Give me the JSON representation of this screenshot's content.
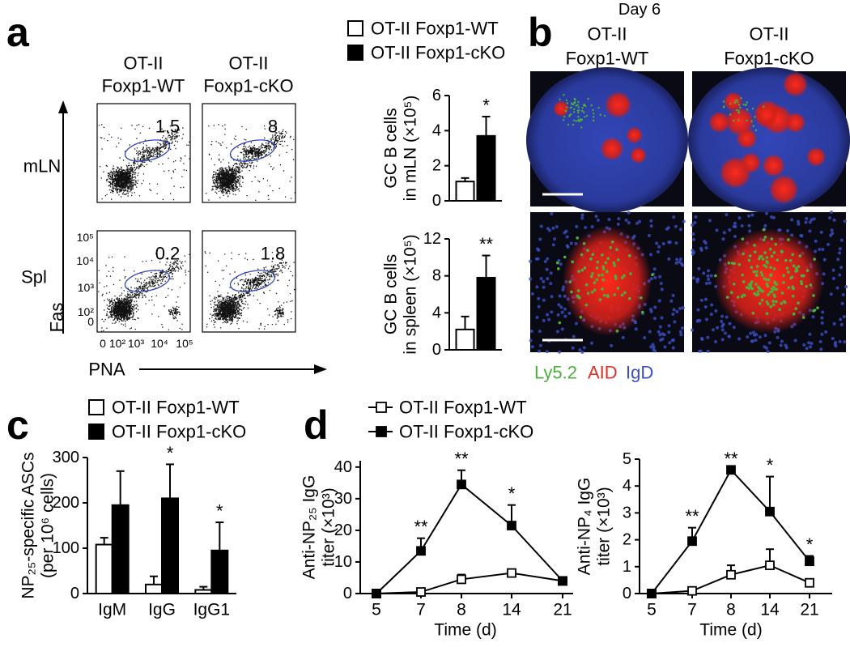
{
  "flow": {
    "panel": "a",
    "columns": [
      [
        "OT-II",
        "Foxp1-WT"
      ],
      [
        "OT-II",
        "Foxp1-cKO"
      ]
    ],
    "rows": [
      "mLN",
      "Spl"
    ],
    "gates": [
      [
        1.5,
        8
      ],
      [
        0.2,
        1.8
      ]
    ],
    "y_axis_label": "Fas",
    "x_axis_label": "PNA",
    "yticks": [
      "10⁵",
      "10⁴",
      "10³",
      "10²",
      0
    ],
    "xticks": [
      0,
      "10²",
      "10³",
      "10⁴",
      "10⁵"
    ]
  },
  "microscopy": {
    "panel": "b",
    "title": "Day 6",
    "columns": [
      [
        "OT-II",
        "Foxp1-WT"
      ],
      [
        "OT-II",
        "Foxp1-cKO"
      ]
    ],
    "stains": [
      {
        "name": "Ly5.2",
        "color": "#4caf3c"
      },
      {
        "name": "AID",
        "color": "#e0302a"
      },
      {
        "name": "IgD",
        "color": "#3b4fc4"
      }
    ]
  },
  "chart_data": [
    {
      "type": "bar",
      "ylabel": [
        "GC B cells",
        "in mLN (×10⁵)"
      ],
      "ylim": [
        0,
        6
      ],
      "yticks": [
        0,
        2,
        4,
        6
      ],
      "series": [
        {
          "name": "OT-II Foxp1-WT",
          "color": "#ffffff",
          "values": [
            1.1
          ],
          "errors": [
            0.2
          ]
        },
        {
          "name": "OT-II Foxp1-cKO",
          "color": "#000000",
          "values": [
            3.7
          ],
          "errors": [
            1.1
          ],
          "significance": [
            "*"
          ]
        }
      ]
    },
    {
      "type": "bar",
      "ylabel": [
        "GC B cells",
        "in spleen (×10⁵)"
      ],
      "ylim": [
        0,
        12
      ],
      "yticks": [
        0,
        4,
        8,
        12
      ],
      "series": [
        {
          "color": "#ffffff",
          "values": [
            2.2
          ],
          "errors": [
            1.4
          ]
        },
        {
          "color": "#000000",
          "values": [
            7.8
          ],
          "errors": [
            2.4
          ],
          "significance": [
            "**"
          ]
        }
      ]
    },
    {
      "type": "bar",
      "panel": "c",
      "ylabel": [
        "NP₂₅-specific ASCs",
        "(per 10⁶ cells)"
      ],
      "categories": [
        "IgM",
        "IgG",
        "IgG1"
      ],
      "ylim": [
        0,
        300
      ],
      "yticks": [
        0,
        100,
        200,
        300
      ],
      "series": [
        {
          "name": "OT-II Foxp1-WT",
          "color": "#ffffff",
          "values": [
            108,
            20,
            8
          ],
          "errors": [
            15,
            18,
            7
          ]
        },
        {
          "name": "OT-II Foxp1-cKO",
          "color": "#000000",
          "values": [
            195,
            210,
            95
          ],
          "errors": [
            75,
            75,
            62
          ],
          "significance": [
            null,
            "*",
            "*"
          ]
        }
      ]
    },
    {
      "type": "line",
      "panel": "d",
      "ylabel": [
        "Anti-NP₂₅ IgG",
        "titer (×10³)"
      ],
      "xlabel": "Time (d)",
      "categories": [
        "5",
        "7",
        "8",
        "14",
        "21"
      ],
      "ylim": [
        0,
        42
      ],
      "yticks": [
        0,
        10,
        20,
        30,
        40
      ],
      "series": [
        {
          "name": "OT-II Foxp1-WT",
          "color": "#ffffff",
          "values": [
            0,
            0.5,
            4.5,
            6.5,
            4
          ],
          "errors": [
            0,
            0.5,
            1.5,
            0.5,
            0.5
          ]
        },
        {
          "name": "OT-II Foxp1-cKO",
          "color": "#000000",
          "values": [
            0,
            13.5,
            34.5,
            21.5,
            4
          ],
          "errors": [
            0,
            4,
            4.5,
            6.5,
            0.5
          ],
          "significance": [
            null,
            "**",
            "**",
            "*",
            null
          ]
        }
      ]
    },
    {
      "type": "line",
      "ylabel": [
        "Anti-NP₄ IgG",
        "titer (×10³)"
      ],
      "xlabel": "Time (d)",
      "categories": [
        "5",
        "7",
        "8",
        "14",
        "21"
      ],
      "ylim": [
        0,
        5
      ],
      "yticks": [
        0,
        1,
        2,
        3,
        4,
        5
      ],
      "series": [
        {
          "color": "#ffffff",
          "values": [
            0,
            0.1,
            0.7,
            1.05,
            0.4
          ],
          "errors": [
            0,
            0.1,
            0.35,
            0.6,
            0.05
          ]
        },
        {
          "color": "#000000",
          "values": [
            0,
            1.95,
            4.6,
            3.05,
            1.2
          ],
          "errors": [
            0,
            0.5,
            0,
            1.3,
            0.2
          ],
          "significance": [
            null,
            "**",
            "**",
            "*",
            "*"
          ]
        }
      ]
    }
  ]
}
